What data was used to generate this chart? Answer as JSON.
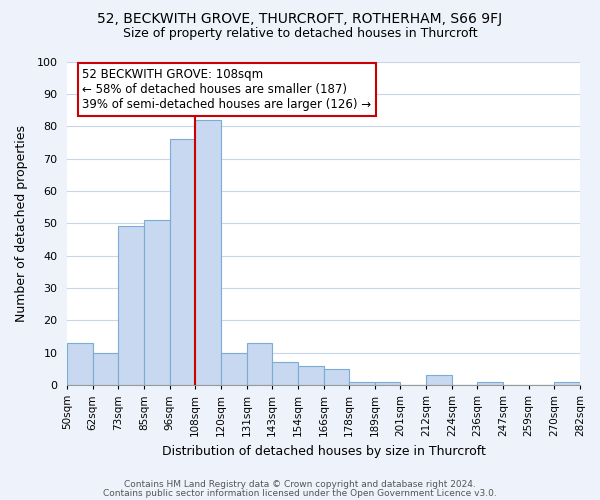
{
  "title": "52, BECKWITH GROVE, THURCROFT, ROTHERHAM, S66 9FJ",
  "subtitle": "Size of property relative to detached houses in Thurcroft",
  "xlabel": "Distribution of detached houses by size in Thurcroft",
  "ylabel": "Number of detached properties",
  "footer_lines": [
    "Contains HM Land Registry data © Crown copyright and database right 2024.",
    "Contains public sector information licensed under the Open Government Licence v3.0."
  ],
  "bin_labels": [
    "50sqm",
    "62sqm",
    "73sqm",
    "85sqm",
    "96sqm",
    "108sqm",
    "120sqm",
    "131sqm",
    "143sqm",
    "154sqm",
    "166sqm",
    "178sqm",
    "189sqm",
    "201sqm",
    "212sqm",
    "224sqm",
    "236sqm",
    "247sqm",
    "259sqm",
    "270sqm",
    "282sqm"
  ],
  "bar_values": [
    13,
    10,
    49,
    51,
    76,
    82,
    10,
    13,
    7,
    6,
    5,
    1,
    1,
    0,
    3,
    0,
    1,
    0,
    0,
    1
  ],
  "bar_color": "#c8d8f0",
  "bar_edge_color": "#7aacd6",
  "vline_pos": 5,
  "vline_color": "#cc0000",
  "annotation_text": "52 BECKWITH GROVE: 108sqm\n← 58% of detached houses are smaller (187)\n39% of semi-detached houses are larger (126) →",
  "annotation_box_color": "#ffffff",
  "annotation_box_edge": "#cc0000",
  "ylim": [
    0,
    100
  ],
  "yticks": [
    0,
    10,
    20,
    30,
    40,
    50,
    60,
    70,
    80,
    90,
    100
  ],
  "bg_color": "#eef2fa",
  "plot_bg_color": "#ffffff",
  "grid_color": "#c8d4e8"
}
